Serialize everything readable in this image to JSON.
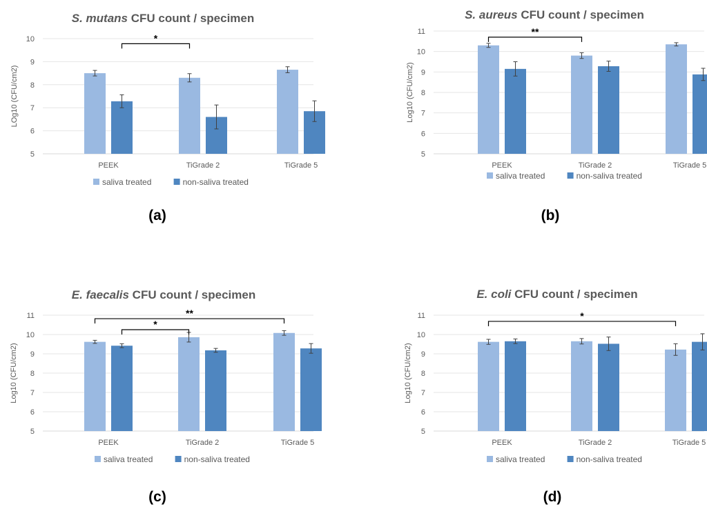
{
  "chart_data": [
    {
      "id": "a",
      "type": "bar",
      "title_italic": "S. mutans",
      "title_rest": " CFU count / specimen",
      "ylabel": "LOg10 (CFU/cm2)",
      "ylim": [
        5,
        10
      ],
      "yticks": [
        "5",
        "6",
        "7",
        "8",
        "9",
        "10"
      ],
      "categories": [
        "PEEK",
        "TiGrade 2",
        "TiGrade 5"
      ],
      "series": [
        {
          "name": "saliva treated",
          "values": [
            8.5,
            8.3,
            8.65
          ],
          "errors": [
            0.12,
            0.18,
            0.13
          ]
        },
        {
          "name": "non-saliva treated",
          "values": [
            7.28,
            6.6,
            6.85
          ],
          "errors": [
            0.28,
            0.52,
            0.45
          ]
        }
      ],
      "significance": [
        {
          "from": [
            0,
            1
          ],
          "to": [
            1,
            0
          ],
          "label": "*",
          "level": 9.78
        }
      ],
      "caption": "(a)"
    },
    {
      "id": "b",
      "type": "bar",
      "title_italic": "S. aureus",
      "title_rest": " CFU count / specimen",
      "ylabel": "Log10 (CFU/cm2)",
      "ylim": [
        5,
        11
      ],
      "yticks": [
        "5",
        "6",
        "7",
        "8",
        "9",
        "10",
        "11"
      ],
      "categories": [
        "PEEK",
        "TiGrade 2",
        "TiGrade 5"
      ],
      "series": [
        {
          "name": "saliva treated",
          "values": [
            10.3,
            9.8,
            10.35
          ],
          "errors": [
            0.1,
            0.14,
            0.08
          ]
        },
        {
          "name": "non-saliva treated",
          "values": [
            9.15,
            9.28,
            8.88
          ],
          "errors": [
            0.35,
            0.25,
            0.3
          ]
        }
      ],
      "significance": [
        {
          "from": [
            0,
            0
          ],
          "to": [
            1,
            0
          ],
          "label": "**",
          "level": 10.7
        }
      ],
      "caption": "(b)"
    },
    {
      "id": "c",
      "type": "bar",
      "title_italic": "E. faecalis",
      "title_rest": " CFU count / specimen",
      "ylabel": "Log10 (CFU/cm2)",
      "ylim": [
        5,
        11
      ],
      "yticks": [
        "5",
        "6",
        "7",
        "8",
        "9",
        "10",
        "11"
      ],
      "categories": [
        "PEEK",
        "TiGrade 2",
        "TiGrade 5"
      ],
      "series": [
        {
          "name": "saliva treated",
          "values": [
            9.62,
            9.86,
            10.08
          ],
          "errors": [
            0.08,
            0.25,
            0.12
          ]
        },
        {
          "name": "non-saliva treated",
          "values": [
            9.42,
            9.18,
            9.28
          ],
          "errors": [
            0.1,
            0.1,
            0.25
          ]
        }
      ],
      "significance": [
        {
          "from": [
            0,
            0
          ],
          "to": [
            2,
            0
          ],
          "label": "**",
          "level": 10.82
        },
        {
          "from": [
            0,
            1
          ],
          "to": [
            1,
            0
          ],
          "label": "*",
          "level": 10.25
        }
      ],
      "caption": "(c)"
    },
    {
      "id": "d",
      "type": "bar",
      "title_italic": "E. coli",
      "title_rest": " CFU count / specimen",
      "ylabel": "Log10 (CFU/cm2)",
      "ylim": [
        5,
        11
      ],
      "yticks": [
        "5",
        "6",
        "7",
        "8",
        "9",
        "10",
        "11"
      ],
      "categories": [
        "PEEK",
        "TiGrade 2",
        "TiGrade 5"
      ],
      "series": [
        {
          "name": "saliva treated",
          "values": [
            9.62,
            9.65,
            9.22
          ],
          "errors": [
            0.13,
            0.14,
            0.3
          ]
        },
        {
          "name": "non-saliva treated",
          "values": [
            9.65,
            9.52,
            9.62
          ],
          "errors": [
            0.12,
            0.35,
            0.42
          ]
        }
      ],
      "significance": [
        {
          "from": [
            0,
            0
          ],
          "to": [
            2,
            0
          ],
          "label": "*",
          "level": 10.68
        }
      ],
      "caption": "(d)"
    }
  ],
  "colors": {
    "saliva": "#9ab9e1",
    "non_saliva": "#4f86c0",
    "axis": "#d9d9d9",
    "grid": "#e6e6e6",
    "error_bar": "#404040",
    "bracket": "#000000"
  }
}
